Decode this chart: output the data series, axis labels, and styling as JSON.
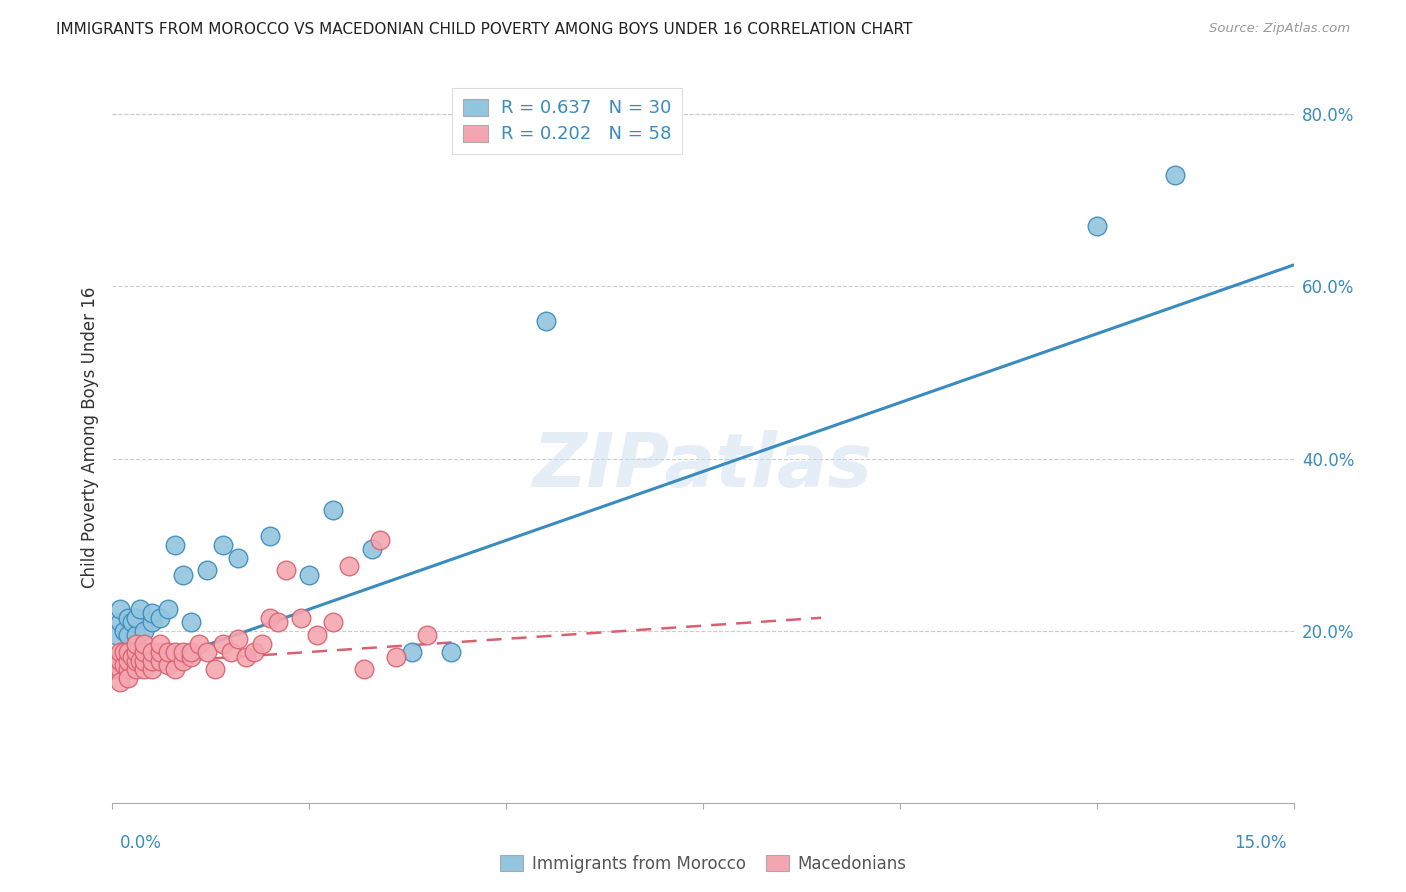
{
  "title": "IMMIGRANTS FROM MOROCCO VS MACEDONIAN CHILD POVERTY AMONG BOYS UNDER 16 CORRELATION CHART",
  "source": "Source: ZipAtlas.com",
  "ylabel": "Child Poverty Among Boys Under 16",
  "xlim": [
    0.0,
    0.15
  ],
  "ylim": [
    0.0,
    0.85
  ],
  "yticks": [
    0.2,
    0.4,
    0.6,
    0.8
  ],
  "ytick_labels": [
    "20.0%",
    "40.0%",
    "60.0%",
    "80.0%"
  ],
  "watermark": "ZIPatlas",
  "color_blue": "#92C5DE",
  "color_pink": "#F4A6B0",
  "line_blue": "#3A8BBE",
  "line_pink": "#D96070",
  "blue_scatter_x": [
    0.0005,
    0.001,
    0.001,
    0.0015,
    0.002,
    0.002,
    0.0025,
    0.003,
    0.003,
    0.0035,
    0.004,
    0.005,
    0.005,
    0.006,
    0.007,
    0.008,
    0.009,
    0.01,
    0.012,
    0.014,
    0.016,
    0.02,
    0.025,
    0.028,
    0.033,
    0.038,
    0.043,
    0.055,
    0.125,
    0.135
  ],
  "blue_scatter_y": [
    0.195,
    0.21,
    0.225,
    0.2,
    0.195,
    0.215,
    0.21,
    0.195,
    0.215,
    0.225,
    0.2,
    0.21,
    0.22,
    0.215,
    0.225,
    0.3,
    0.265,
    0.21,
    0.27,
    0.3,
    0.285,
    0.31,
    0.265,
    0.34,
    0.295,
    0.175,
    0.175,
    0.56,
    0.67,
    0.73
  ],
  "pink_scatter_x": [
    0.0002,
    0.0003,
    0.0005,
    0.0005,
    0.001,
    0.001,
    0.001,
    0.001,
    0.0015,
    0.0015,
    0.002,
    0.002,
    0.002,
    0.002,
    0.0025,
    0.003,
    0.003,
    0.003,
    0.003,
    0.0035,
    0.004,
    0.004,
    0.004,
    0.004,
    0.005,
    0.005,
    0.005,
    0.006,
    0.006,
    0.006,
    0.007,
    0.007,
    0.008,
    0.008,
    0.009,
    0.009,
    0.01,
    0.01,
    0.011,
    0.012,
    0.013,
    0.014,
    0.015,
    0.016,
    0.017,
    0.018,
    0.019,
    0.02,
    0.021,
    0.022,
    0.024,
    0.026,
    0.028,
    0.03,
    0.032,
    0.034,
    0.036,
    0.04
  ],
  "pink_scatter_y": [
    0.16,
    0.165,
    0.155,
    0.17,
    0.155,
    0.165,
    0.175,
    0.14,
    0.16,
    0.175,
    0.155,
    0.165,
    0.175,
    0.145,
    0.17,
    0.155,
    0.165,
    0.175,
    0.185,
    0.165,
    0.155,
    0.165,
    0.175,
    0.185,
    0.155,
    0.165,
    0.175,
    0.165,
    0.175,
    0.185,
    0.16,
    0.175,
    0.155,
    0.175,
    0.165,
    0.175,
    0.17,
    0.175,
    0.185,
    0.175,
    0.155,
    0.185,
    0.175,
    0.19,
    0.17,
    0.175,
    0.185,
    0.215,
    0.21,
    0.27,
    0.215,
    0.195,
    0.21,
    0.275,
    0.155,
    0.305,
    0.17,
    0.195
  ],
  "blue_line_x": [
    0.0,
    0.15
  ],
  "blue_line_y": [
    0.145,
    0.625
  ],
  "pink_line_x": [
    0.0,
    0.09
  ],
  "pink_line_y": [
    0.16,
    0.215
  ]
}
